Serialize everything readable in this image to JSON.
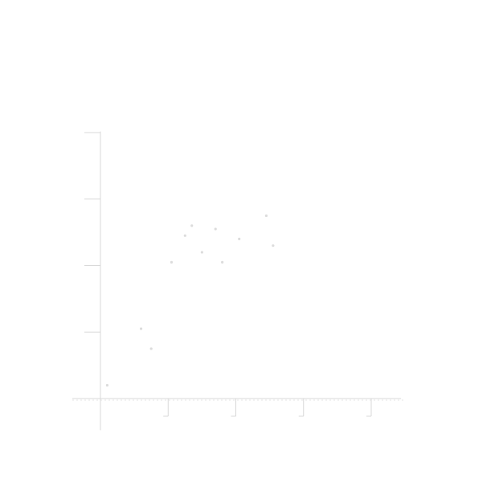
{
  "chart_data": {
    "type": "scatter",
    "title": "",
    "xlabel": "",
    "ylabel": "",
    "grid": false,
    "legend": "none",
    "xlim": [
      0,
      4.5
    ],
    "ylim": [
      -0.5,
      4.5
    ],
    "x_ticks": [
      1,
      2,
      3,
      4
    ],
    "y_ticks": [
      0,
      1,
      2,
      3,
      4
    ],
    "series": [
      {
        "color": "#dcdcdc",
        "points": [
          {
            "x": 0.1,
            "y": 0.2
          },
          {
            "x": 0.6,
            "y": 1.05
          },
          {
            "x": 0.75,
            "y": 0.75
          },
          {
            "x": 1.05,
            "y": 2.05
          },
          {
            "x": 1.25,
            "y": 2.45
          },
          {
            "x": 1.35,
            "y": 2.6
          },
          {
            "x": 1.5,
            "y": 2.2
          },
          {
            "x": 1.7,
            "y": 2.55
          },
          {
            "x": 1.8,
            "y": 2.05
          },
          {
            "x": 2.05,
            "y": 2.4
          },
          {
            "x": 2.45,
            "y": 2.75
          },
          {
            "x": 2.55,
            "y": 2.3
          }
        ]
      }
    ]
  }
}
